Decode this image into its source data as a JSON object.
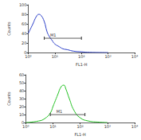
{
  "chart_data": [
    {
      "type": "line",
      "xlabel": "FL1-H",
      "ylabel": "Counts",
      "log": "x",
      "color": "#2b3fc8",
      "x": [
        1,
        1.5,
        2,
        2.5,
        3,
        4,
        5,
        6,
        8,
        10,
        15,
        20,
        30,
        50,
        100,
        200,
        1000
      ],
      "values": [
        40,
        60,
        75,
        80,
        78,
        65,
        45,
        35,
        25,
        18,
        12,
        8,
        6,
        3,
        1.5,
        0.5,
        0
      ],
      "xlim": [
        1,
        10000
      ],
      "xticks": [
        {
          "value": 1,
          "label": "10⁰"
        },
        {
          "value": 10,
          "label": "10¹"
        },
        {
          "value": 100,
          "label": "10²"
        },
        {
          "value": 1000,
          "label": "10³"
        },
        {
          "value": 10000,
          "label": "10⁴"
        }
      ],
      "ylim": [
        0,
        100
      ],
      "yticks": [
        0,
        20,
        40,
        60,
        80,
        100
      ],
      "annotations": [
        {
          "text": "M1",
          "x": [
            4,
            100
          ],
          "y": 30
        }
      ]
    },
    {
      "type": "line",
      "xlabel": "FL1-H",
      "ylabel": "Counts",
      "log": "x",
      "color": "#22c022",
      "x": [
        1,
        3,
        5,
        8,
        10,
        15,
        20,
        25,
        30,
        40,
        60,
        100,
        200,
        500,
        1000
      ],
      "values": [
        0,
        2,
        5,
        12,
        20,
        35,
        45,
        47,
        42,
        30,
        15,
        6,
        2,
        0.5,
        0
      ],
      "xlim": [
        1,
        10000
      ],
      "xticks": [
        {
          "value": 1,
          "label": "10⁰"
        },
        {
          "value": 10,
          "label": "10¹"
        },
        {
          "value": 100,
          "label": "10²"
        },
        {
          "value": 1000,
          "label": "10³"
        },
        {
          "value": 10000,
          "label": "10⁴"
        }
      ],
      "ylim": [
        0,
        60
      ],
      "yticks": [
        0,
        10,
        20,
        30,
        40,
        50,
        60
      ],
      "annotations": [
        {
          "text": "M1",
          "x": [
            8,
            150
          ],
          "y": 10
        }
      ]
    }
  ]
}
